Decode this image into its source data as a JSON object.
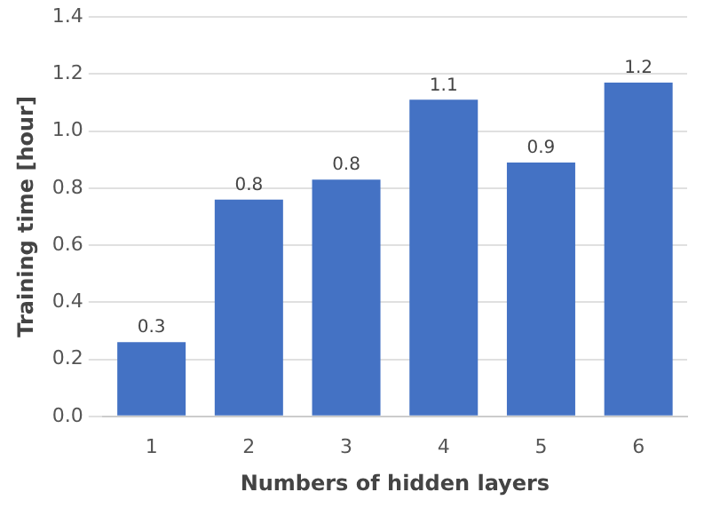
{
  "chart_data": {
    "type": "bar",
    "xlabel": "Numbers of hidden layers",
    "ylabel": "Training time [hour]",
    "categories": [
      "1",
      "2",
      "3",
      "4",
      "5",
      "6"
    ],
    "values": [
      0.26,
      0.76,
      0.83,
      1.11,
      0.89,
      1.17
    ],
    "value_labels": [
      "0.3",
      "0.8",
      "0.8",
      "1.1",
      "0.9",
      "1.2"
    ],
    "color": "#4472c4",
    "ylim": [
      0,
      1.4
    ],
    "yticks": [
      {
        "value": 0,
        "label": "0.0"
      },
      {
        "value": 0.2,
        "label": "0.2"
      },
      {
        "value": 0.4,
        "label": "0.4"
      },
      {
        "value": 0.6,
        "label": "0.6"
      },
      {
        "value": 0.8,
        "label": "0.8"
      },
      {
        "value": 1,
        "label": "1.0"
      },
      {
        "value": 1.2,
        "label": "1.2"
      },
      {
        "value": 1.4,
        "label": "1.4"
      }
    ],
    "grid": "y"
  }
}
